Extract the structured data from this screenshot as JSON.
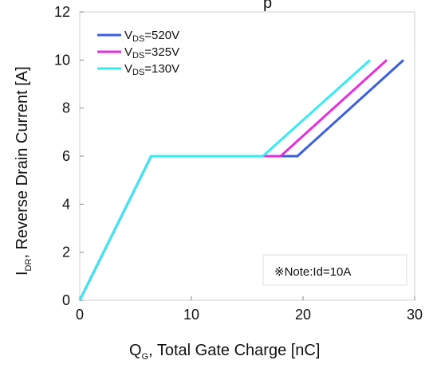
{
  "chart_data": {
    "type": "line",
    "title_fragment": "p",
    "xlabel": {
      "main": "Q",
      "sub": "G",
      "rest": ", Total Gate Charge [nC]"
    },
    "ylabel": {
      "main": "I",
      "sub": "DR",
      "rest": ", Reverse Drain Current [A]"
    },
    "xlim": [
      0,
      30
    ],
    "ylim": [
      0,
      12
    ],
    "xticks": [
      0,
      10,
      20,
      30
    ],
    "yticks": [
      0,
      2,
      4,
      6,
      8,
      10,
      12
    ],
    "grid": false,
    "legend_position": "top-left",
    "series": [
      {
        "name": {
          "main": "V",
          "sub": "DS",
          "rest": "=520V"
        },
        "color": "#3a5fe0",
        "points": [
          [
            0,
            0
          ],
          [
            6.4,
            6
          ],
          [
            19.5,
            6
          ],
          [
            29,
            10
          ]
        ]
      },
      {
        "name": {
          "main": "V",
          "sub": "DS",
          "rest": "=325V"
        },
        "color": "#e62ee0",
        "points": [
          [
            0,
            0
          ],
          [
            6.4,
            6
          ],
          [
            18,
            6
          ],
          [
            27.5,
            10
          ]
        ]
      },
      {
        "name": {
          "main": "V",
          "sub": "DS",
          "rest": "=130V"
        },
        "color": "#33ecf2",
        "points": [
          [
            0,
            0
          ],
          [
            6.4,
            6
          ],
          [
            16.4,
            6
          ],
          [
            26,
            10
          ]
        ]
      }
    ],
    "annotation": "※Note:Id=10A"
  }
}
